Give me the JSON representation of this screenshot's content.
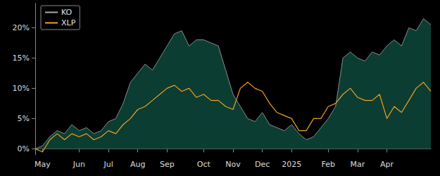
{
  "chart_data": {
    "type": "line",
    "categories": [
      null,
      "May",
      null,
      null,
      null,
      null,
      "Jun",
      null,
      null,
      null,
      "Jul",
      null,
      null,
      null,
      "Aug",
      null,
      null,
      null,
      "Sep",
      null,
      null,
      null,
      null,
      "Oct",
      null,
      null,
      null,
      "Nov",
      null,
      null,
      null,
      "Dec",
      null,
      null,
      null,
      "2025",
      null,
      null,
      null,
      null,
      "Feb",
      null,
      null,
      null,
      "Mar",
      null,
      null,
      null,
      "Apr",
      null,
      null,
      null,
      null,
      null,
      null
    ],
    "series": [
      {
        "name": "KO",
        "color": "#a8a8a8",
        "values": [
          0,
          0.5,
          2,
          3,
          2.5,
          4,
          3,
          3.5,
          2.5,
          3,
          4.5,
          5,
          7.5,
          11,
          12.5,
          14,
          13,
          15,
          17,
          19,
          19.5,
          17,
          18,
          18,
          17.5,
          17,
          13,
          9,
          7,
          5,
          4.5,
          6,
          4,
          3.5,
          3,
          4,
          2.5,
          1.5,
          2,
          3.5,
          5,
          7,
          15,
          16,
          15,
          14.5,
          16,
          15.5,
          17,
          18,
          17,
          20,
          19.5,
          21.5,
          20.5
        ]
      },
      {
        "name": "XLP",
        "color": "#f0a020",
        "values": [
          0,
          -0.5,
          1.5,
          2.5,
          1.5,
          2.5,
          2,
          2.5,
          1.5,
          2,
          3,
          2.5,
          4,
          5,
          6.5,
          7,
          8,
          9,
          10,
          10.5,
          9.5,
          10,
          8.5,
          9,
          8,
          8,
          7,
          6.5,
          10,
          11,
          10,
          9.5,
          7.5,
          6,
          5.5,
          5,
          3,
          3,
          5,
          5,
          7,
          7.5,
          9,
          10,
          8.5,
          8,
          8,
          9,
          5,
          7,
          6,
          8,
          10,
          11,
          9.5
        ]
      }
    ],
    "ylim": [
      -1,
      24
    ],
    "yticks": [
      {
        "value": 0,
        "label": "0%"
      },
      {
        "value": 5,
        "label": "5%"
      },
      {
        "value": 10,
        "label": "10%"
      },
      {
        "value": 15,
        "label": "15%"
      },
      {
        "value": 20,
        "label": "20%"
      }
    ],
    "grid": false,
    "legend": "upper left"
  }
}
